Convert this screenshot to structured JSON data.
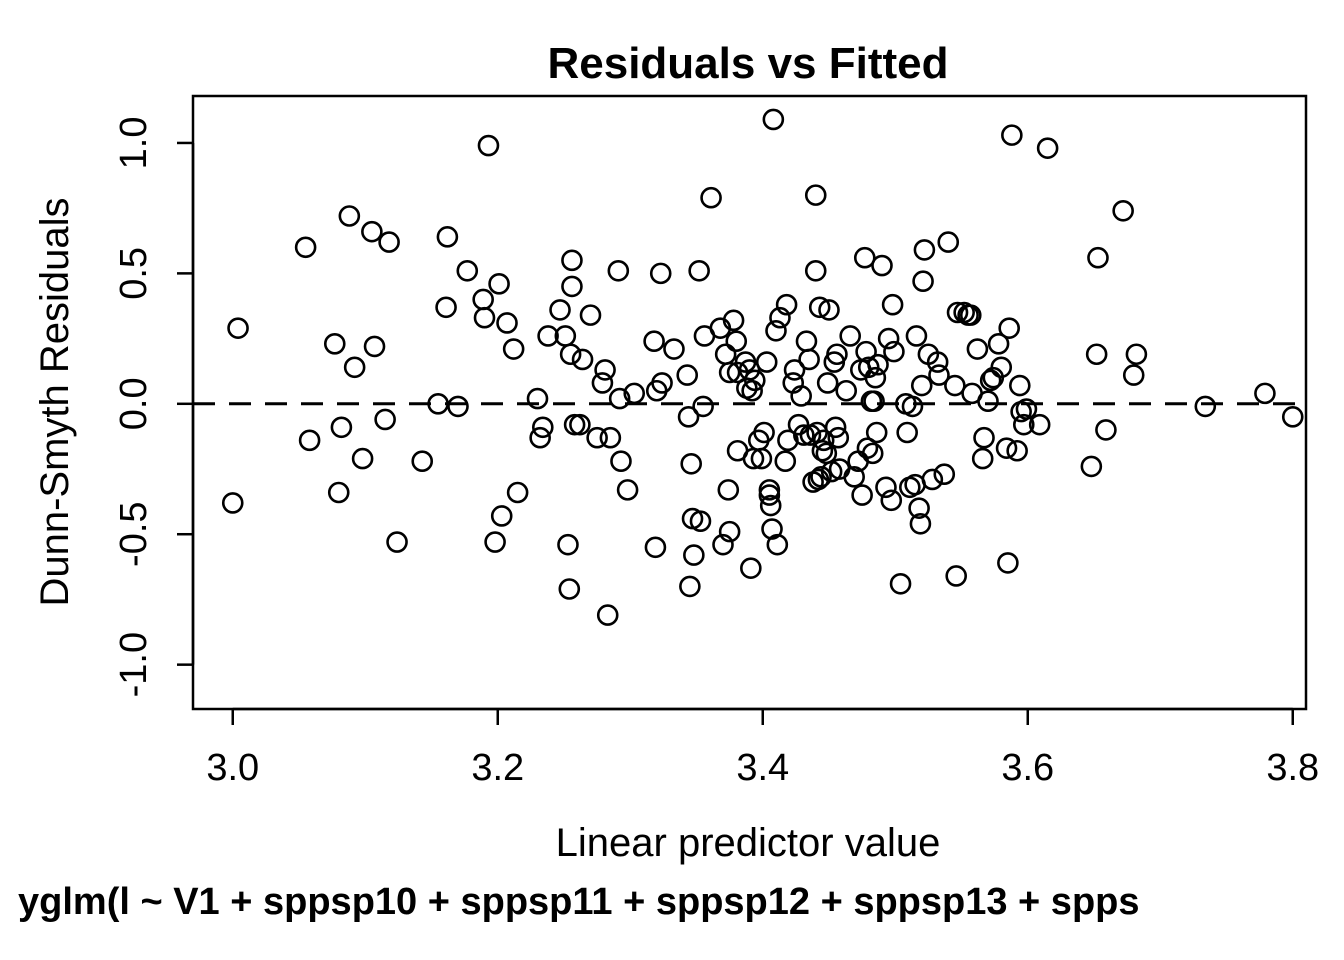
{
  "chart_data": {
    "type": "scatter",
    "title": "Residuals vs Fitted",
    "xlabel": "Linear predictor value",
    "ylabel": "Dunn-Smyth Residuals",
    "subtitle": "yglm(l ~ V1 + sppsp10 + sppsp11 + sppsp12 + sppsp13 + spps",
    "xlim": [
      2.97,
      3.81
    ],
    "ylim": [
      -1.17,
      1.18
    ],
    "xticks": [
      3.0,
      3.2,
      3.4,
      3.6,
      3.8
    ],
    "xtick_labels": [
      "3.0",
      "3.2",
      "3.4",
      "3.6",
      "3.8"
    ],
    "yticks": [
      -1.0,
      -0.5,
      0.0,
      0.5,
      1.0
    ],
    "ytick_labels": [
      "-1.0",
      "-0.5",
      "0.0",
      "0.5",
      "1.0"
    ],
    "reference_line": {
      "y": 0.0,
      "style": "dashed"
    },
    "grid": false,
    "marker": "open-circle",
    "points": [
      [
        3.0,
        -0.38
      ],
      [
        3.004,
        0.29
      ],
      [
        3.055,
        0.6
      ],
      [
        3.058,
        -0.14
      ],
      [
        3.077,
        0.23
      ],
      [
        3.08,
        -0.34
      ],
      [
        3.082,
        -0.09
      ],
      [
        3.088,
        0.72
      ],
      [
        3.092,
        0.14
      ],
      [
        3.098,
        -0.21
      ],
      [
        3.105,
        0.66
      ],
      [
        3.107,
        0.22
      ],
      [
        3.115,
        -0.06
      ],
      [
        3.118,
        0.62
      ],
      [
        3.124,
        -0.53
      ],
      [
        3.143,
        -0.22
      ],
      [
        3.155,
        0.0
      ],
      [
        3.161,
        0.37
      ],
      [
        3.162,
        0.64
      ],
      [
        3.17,
        -0.01
      ],
      [
        3.177,
        0.51
      ],
      [
        3.189,
        0.4
      ],
      [
        3.19,
        0.33
      ],
      [
        3.193,
        0.99
      ],
      [
        3.198,
        -0.53
      ],
      [
        3.201,
        0.46
      ],
      [
        3.203,
        -0.43
      ],
      [
        3.207,
        0.31
      ],
      [
        3.212,
        0.21
      ],
      [
        3.215,
        -0.34
      ],
      [
        3.23,
        0.02
      ],
      [
        3.232,
        -0.13
      ],
      [
        3.234,
        -0.09
      ],
      [
        3.238,
        0.26
      ],
      [
        3.247,
        0.36
      ],
      [
        3.251,
        0.26
      ],
      [
        3.253,
        -0.54
      ],
      [
        3.254,
        -0.71
      ],
      [
        3.255,
        0.19
      ],
      [
        3.256,
        0.45
      ],
      [
        3.256,
        0.55
      ],
      [
        3.258,
        -0.08
      ],
      [
        3.262,
        -0.08
      ],
      [
        3.264,
        0.17
      ],
      [
        3.27,
        0.34
      ],
      [
        3.275,
        -0.13
      ],
      [
        3.279,
        0.08
      ],
      [
        3.281,
        0.13
      ],
      [
        3.283,
        -0.81
      ],
      [
        3.285,
        -0.13
      ],
      [
        3.291,
        0.51
      ],
      [
        3.292,
        0.02
      ],
      [
        3.293,
        -0.22
      ],
      [
        3.298,
        -0.33
      ],
      [
        3.303,
        0.04
      ],
      [
        3.318,
        0.24
      ],
      [
        3.319,
        -0.55
      ],
      [
        3.32,
        0.05
      ],
      [
        3.323,
        0.5
      ],
      [
        3.324,
        0.08
      ],
      [
        3.333,
        0.21
      ],
      [
        3.343,
        0.11
      ],
      [
        3.344,
        -0.05
      ],
      [
        3.345,
        -0.7
      ],
      [
        3.346,
        -0.23
      ],
      [
        3.347,
        -0.44
      ],
      [
        3.348,
        -0.58
      ],
      [
        3.352,
        0.51
      ],
      [
        3.353,
        -0.45
      ],
      [
        3.355,
        -0.01
      ],
      [
        3.356,
        0.26
      ],
      [
        3.361,
        0.79
      ],
      [
        3.368,
        0.29
      ],
      [
        3.37,
        -0.54
      ],
      [
        3.372,
        0.19
      ],
      [
        3.374,
        -0.33
      ],
      [
        3.375,
        0.12
      ],
      [
        3.375,
        -0.49
      ],
      [
        3.378,
        0.32
      ],
      [
        3.38,
        0.24
      ],
      [
        3.381,
        -0.18
      ],
      [
        3.381,
        0.12
      ],
      [
        3.387,
        0.16
      ],
      [
        3.388,
        0.06
      ],
      [
        3.39,
        0.13
      ],
      [
        3.391,
        -0.63
      ],
      [
        3.392,
        0.05
      ],
      [
        3.393,
        -0.21
      ],
      [
        3.394,
        0.09
      ],
      [
        3.397,
        -0.14
      ],
      [
        3.399,
        -0.21
      ],
      [
        3.401,
        -0.11
      ],
      [
        3.403,
        0.16
      ],
      [
        3.405,
        -0.35
      ],
      [
        3.405,
        -0.33
      ],
      [
        3.406,
        -0.39
      ],
      [
        3.407,
        -0.48
      ],
      [
        3.408,
        1.09
      ],
      [
        3.41,
        0.28
      ],
      [
        3.411,
        -0.54
      ],
      [
        3.413,
        0.33
      ],
      [
        3.417,
        -0.22
      ],
      [
        3.418,
        0.38
      ],
      [
        3.419,
        -0.14
      ],
      [
        3.423,
        0.08
      ],
      [
        3.424,
        0.13
      ],
      [
        3.427,
        -0.08
      ],
      [
        3.429,
        0.03
      ],
      [
        3.431,
        -0.12
      ],
      [
        3.433,
        0.24
      ],
      [
        3.435,
        0.17
      ],
      [
        3.436,
        -0.12
      ],
      [
        3.438,
        -0.3
      ],
      [
        3.44,
        0.8
      ],
      [
        3.44,
        0.51
      ],
      [
        3.441,
        -0.11
      ],
      [
        3.442,
        -0.29
      ],
      [
        3.443,
        0.37
      ],
      [
        3.444,
        -0.28
      ],
      [
        3.445,
        -0.18
      ],
      [
        3.446,
        -0.14
      ],
      [
        3.448,
        -0.19
      ],
      [
        3.449,
        0.08
      ],
      [
        3.45,
        0.36
      ],
      [
        3.452,
        -0.26
      ],
      [
        3.454,
        0.16
      ],
      [
        3.455,
        -0.09
      ],
      [
        3.456,
        0.19
      ],
      [
        3.457,
        -0.13
      ],
      [
        3.458,
        -0.25
      ],
      [
        3.463,
        0.05
      ],
      [
        3.466,
        0.26
      ],
      [
        3.469,
        -0.28
      ],
      [
        3.472,
        -0.22
      ],
      [
        3.474,
        0.13
      ],
      [
        3.475,
        -0.35
      ],
      [
        3.477,
        0.56
      ],
      [
        3.478,
        0.2
      ],
      [
        3.479,
        -0.17
      ],
      [
        3.48,
        0.14
      ],
      [
        3.482,
        0.01
      ],
      [
        3.483,
        -0.19
      ],
      [
        3.484,
        0.01
      ],
      [
        3.485,
        0.1
      ],
      [
        3.486,
        -0.11
      ],
      [
        3.487,
        0.15
      ],
      [
        3.49,
        0.53
      ],
      [
        3.493,
        -0.32
      ],
      [
        3.495,
        0.25
      ],
      [
        3.497,
        -0.37
      ],
      [
        3.498,
        0.38
      ],
      [
        3.499,
        0.2
      ],
      [
        3.504,
        -0.69
      ],
      [
        3.508,
        0.0
      ],
      [
        3.509,
        -0.11
      ],
      [
        3.511,
        -0.32
      ],
      [
        3.513,
        -0.01
      ],
      [
        3.515,
        -0.31
      ],
      [
        3.516,
        0.26
      ],
      [
        3.518,
        -0.4
      ],
      [
        3.519,
        -0.46
      ],
      [
        3.52,
        0.07
      ],
      [
        3.521,
        0.47
      ],
      [
        3.522,
        0.59
      ],
      [
        3.525,
        0.19
      ],
      [
        3.528,
        -0.29
      ],
      [
        3.532,
        0.16
      ],
      [
        3.533,
        0.11
      ],
      [
        3.537,
        -0.27
      ],
      [
        3.54,
        0.62
      ],
      [
        3.545,
        0.07
      ],
      [
        3.546,
        -0.66
      ],
      [
        3.547,
        0.35
      ],
      [
        3.552,
        0.35
      ],
      [
        3.555,
        0.34
      ],
      [
        3.557,
        0.34
      ],
      [
        3.558,
        0.04
      ],
      [
        3.562,
        0.21
      ],
      [
        3.566,
        -0.21
      ],
      [
        3.567,
        -0.13
      ],
      [
        3.57,
        0.01
      ],
      [
        3.572,
        0.09
      ],
      [
        3.574,
        0.1
      ],
      [
        3.578,
        0.23
      ],
      [
        3.58,
        0.14
      ],
      [
        3.584,
        -0.17
      ],
      [
        3.585,
        -0.61
      ],
      [
        3.586,
        0.29
      ],
      [
        3.588,
        1.03
      ],
      [
        3.592,
        -0.18
      ],
      [
        3.594,
        0.07
      ],
      [
        3.595,
        -0.03
      ],
      [
        3.597,
        -0.08
      ],
      [
        3.599,
        -0.02
      ],
      [
        3.609,
        -0.08
      ],
      [
        3.615,
        0.98
      ],
      [
        3.648,
        -0.24
      ],
      [
        3.652,
        0.19
      ],
      [
        3.653,
        0.56
      ],
      [
        3.659,
        -0.1
      ],
      [
        3.672,
        0.74
      ],
      [
        3.68,
        0.11
      ],
      [
        3.682,
        0.19
      ],
      [
        3.734,
        -0.01
      ],
      [
        3.779,
        0.04
      ],
      [
        3.8,
        -0.05
      ]
    ]
  }
}
